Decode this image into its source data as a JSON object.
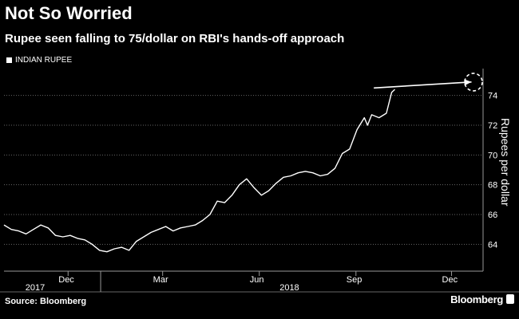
{
  "chart_data": {
    "type": "line",
    "title": "Not So Worried",
    "subtitle": "Rupee seen falling to 75/dollar on RBI's hands-off approach",
    "ylabel": "Rupees per dollar",
    "source": "Source: Bloomberg",
    "brand": "Bloomberg",
    "legend": [
      {
        "name": "INDIAN RUPEE",
        "color": "#ffffff"
      }
    ],
    "grid": true,
    "ylim": [
      62.2,
      75.8
    ],
    "yticks": [
      64,
      66,
      68,
      70,
      72,
      74
    ],
    "xlim": [
      "2017-10-01",
      "2018-12-31"
    ],
    "month_ticks": [
      {
        "label": "Dec",
        "date": "2017-12-01"
      },
      {
        "label": "Mar",
        "date": "2018-03-01"
      },
      {
        "label": "Jun",
        "date": "2018-06-01"
      },
      {
        "label": "Sep",
        "date": "2018-09-01"
      },
      {
        "label": "Dec",
        "date": "2018-12-01"
      }
    ],
    "year_labels": [
      {
        "label": "2017",
        "date": "2017-11-01"
      },
      {
        "label": "2018",
        "date": "2018-07-01"
      }
    ],
    "forecast": {
      "from": {
        "x": "2018-09-18",
        "y": 74.5
      },
      "to": {
        "x": "2018-12-20",
        "y": 74.9
      },
      "target": {
        "x": "2018-12-31",
        "y": 75
      }
    },
    "series": [
      {
        "name": "INDIAN RUPEE",
        "points": [
          {
            "x": "2017-10-01",
            "y": 65.3
          },
          {
            "x": "2017-10-08",
            "y": 65.0
          },
          {
            "x": "2017-10-15",
            "y": 64.9
          },
          {
            "x": "2017-10-22",
            "y": 64.7
          },
          {
            "x": "2017-10-29",
            "y": 65.0
          },
          {
            "x": "2017-11-05",
            "y": 65.3
          },
          {
            "x": "2017-11-12",
            "y": 65.1
          },
          {
            "x": "2017-11-19",
            "y": 64.6
          },
          {
            "x": "2017-11-26",
            "y": 64.5
          },
          {
            "x": "2017-12-03",
            "y": 64.6
          },
          {
            "x": "2017-12-10",
            "y": 64.4
          },
          {
            "x": "2017-12-17",
            "y": 64.3
          },
          {
            "x": "2017-12-24",
            "y": 64.0
          },
          {
            "x": "2017-12-31",
            "y": 63.6
          },
          {
            "x": "2018-01-07",
            "y": 63.5
          },
          {
            "x": "2018-01-14",
            "y": 63.7
          },
          {
            "x": "2018-01-21",
            "y": 63.8
          },
          {
            "x": "2018-01-28",
            "y": 63.6
          },
          {
            "x": "2018-02-04",
            "y": 64.2
          },
          {
            "x": "2018-02-11",
            "y": 64.5
          },
          {
            "x": "2018-02-18",
            "y": 64.8
          },
          {
            "x": "2018-02-25",
            "y": 65.0
          },
          {
            "x": "2018-03-04",
            "y": 65.2
          },
          {
            "x": "2018-03-11",
            "y": 64.9
          },
          {
            "x": "2018-03-18",
            "y": 65.1
          },
          {
            "x": "2018-03-25",
            "y": 65.2
          },
          {
            "x": "2018-04-01",
            "y": 65.3
          },
          {
            "x": "2018-04-08",
            "y": 65.6
          },
          {
            "x": "2018-04-15",
            "y": 66.0
          },
          {
            "x": "2018-04-22",
            "y": 66.9
          },
          {
            "x": "2018-04-29",
            "y": 66.8
          },
          {
            "x": "2018-05-06",
            "y": 67.3
          },
          {
            "x": "2018-05-13",
            "y": 68.0
          },
          {
            "x": "2018-05-20",
            "y": 68.4
          },
          {
            "x": "2018-05-27",
            "y": 67.8
          },
          {
            "x": "2018-06-03",
            "y": 67.3
          },
          {
            "x": "2018-06-10",
            "y": 67.6
          },
          {
            "x": "2018-06-17",
            "y": 68.1
          },
          {
            "x": "2018-06-24",
            "y": 68.5
          },
          {
            "x": "2018-07-01",
            "y": 68.6
          },
          {
            "x": "2018-07-08",
            "y": 68.8
          },
          {
            "x": "2018-07-15",
            "y": 68.9
          },
          {
            "x": "2018-07-22",
            "y": 68.8
          },
          {
            "x": "2018-07-29",
            "y": 68.6
          },
          {
            "x": "2018-08-05",
            "y": 68.7
          },
          {
            "x": "2018-08-12",
            "y": 69.1
          },
          {
            "x": "2018-08-19",
            "y": 70.1
          },
          {
            "x": "2018-08-26",
            "y": 70.4
          },
          {
            "x": "2018-09-02",
            "y": 71.7
          },
          {
            "x": "2018-09-09",
            "y": 72.5
          },
          {
            "x": "2018-09-12",
            "y": 72.0
          },
          {
            "x": "2018-09-16",
            "y": 72.7
          },
          {
            "x": "2018-09-23",
            "y": 72.5
          },
          {
            "x": "2018-09-30",
            "y": 72.8
          },
          {
            "x": "2018-10-05",
            "y": 74.2
          },
          {
            "x": "2018-10-08",
            "y": 74.4
          }
        ]
      }
    ]
  }
}
